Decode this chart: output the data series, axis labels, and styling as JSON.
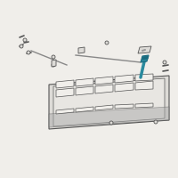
{
  "bg_color": "#f0eeea",
  "border_color": "#cccccc",
  "line_color": "#888888",
  "dark_color": "#555555",
  "highlight_color": "#2a8a9e",
  "highlight_dark": "#1a6a7e",
  "panel_color": "#dddbd7",
  "panel_dark": "#aaaaaa",
  "inner_panel_color": "#e8e6e2",
  "screw_color": "#999999"
}
